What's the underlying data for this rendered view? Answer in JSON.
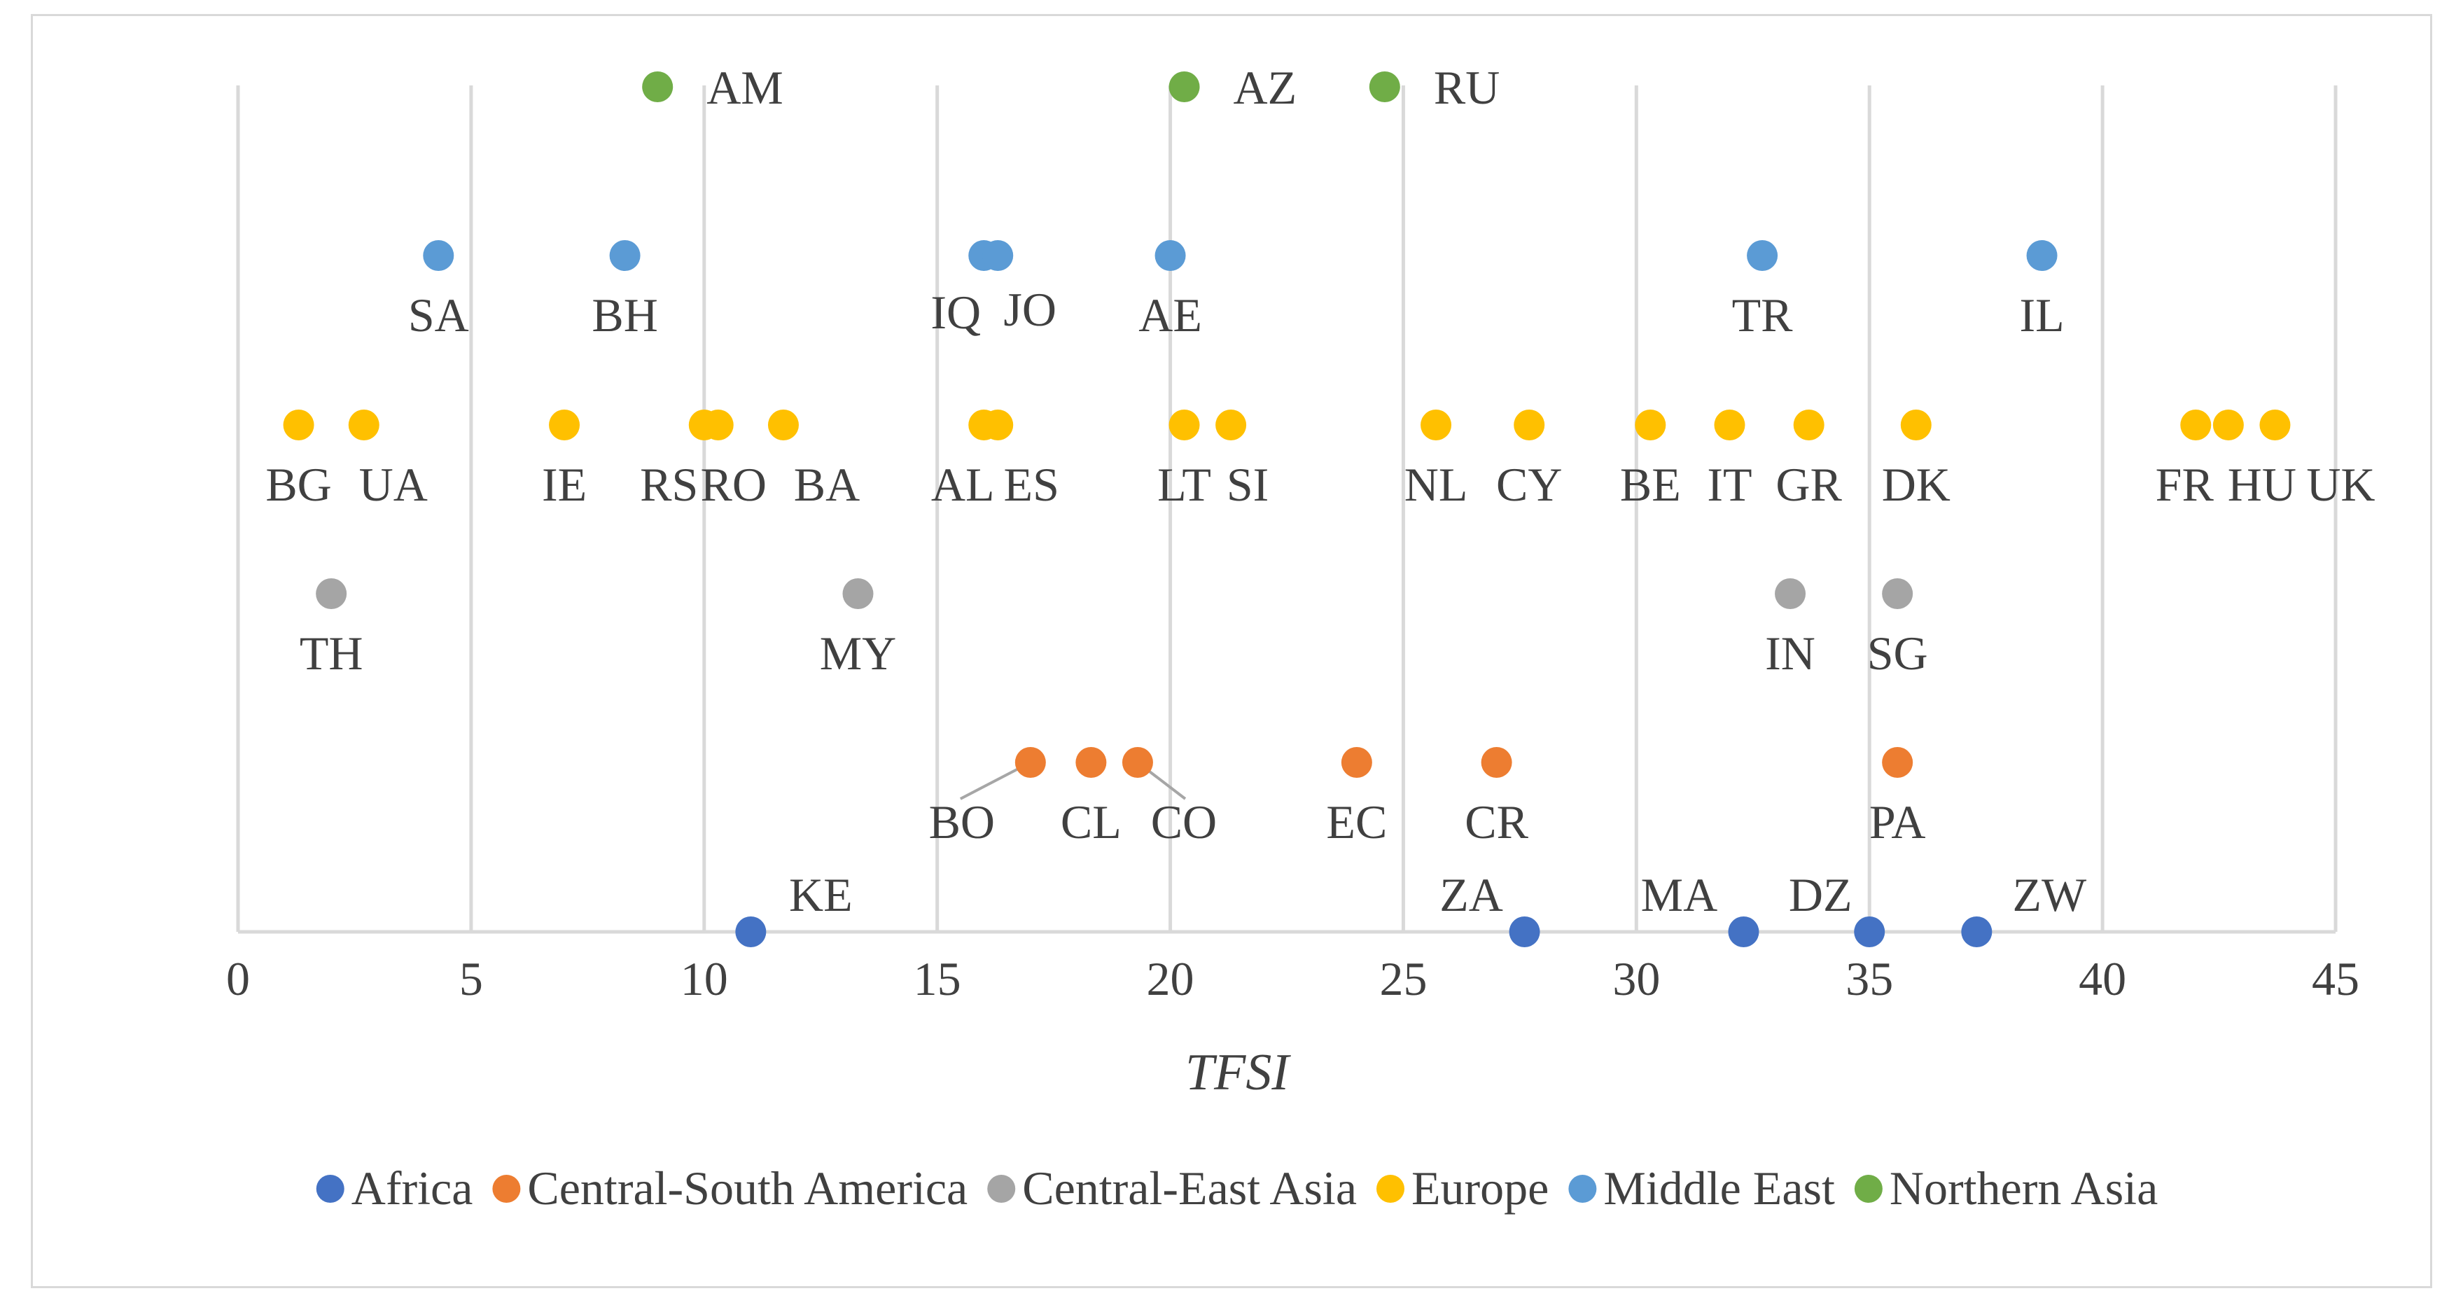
{
  "chart_data": {
    "type": "scatter",
    "title": "",
    "xlabel": "TFSI",
    "ylabel": "",
    "xlim": [
      0,
      45
    ],
    "x_ticks": [
      "0",
      "5",
      "10",
      "15",
      "20",
      "25",
      "30",
      "35",
      "40",
      "45"
    ],
    "grid": true,
    "legend_position": "bottom",
    "series": [
      {
        "name": "Africa",
        "color": "#4472C4",
        "row": 0,
        "points": [
          {
            "label": "KE",
            "x": 11.0
          },
          {
            "label": "ZA",
            "x": 27.6
          },
          {
            "label": "MA",
            "x": 32.3
          },
          {
            "label": "DZ",
            "x": 35.0
          },
          {
            "label": "ZW",
            "x": 37.3
          }
        ]
      },
      {
        "name": "Central-South America",
        "color": "#ED7D31",
        "row": 1,
        "points": [
          {
            "label": "BO",
            "x": 17.0
          },
          {
            "label": "CL",
            "x": 18.3
          },
          {
            "label": "CO",
            "x": 19.3
          },
          {
            "label": "EC",
            "x": 24.0
          },
          {
            "label": "CR",
            "x": 27.0
          },
          {
            "label": "PA",
            "x": 35.6
          }
        ]
      },
      {
        "name": "Central-East Asia",
        "color": "#A5A5A5",
        "row": 2,
        "points": [
          {
            "label": "TH",
            "x": 2.0
          },
          {
            "label": "MY",
            "x": 13.3
          },
          {
            "label": "IN",
            "x": 33.3
          },
          {
            "label": "SG",
            "x": 35.6
          }
        ]
      },
      {
        "name": "Europe",
        "color": "#FFC000",
        "row": 3,
        "points": [
          {
            "label": "BG",
            "x": 1.3
          },
          {
            "label": "UA",
            "x": 2.7
          },
          {
            "label": "IE",
            "x": 7.0
          },
          {
            "label": "RS",
            "x": 10.0
          },
          {
            "label": "RO",
            "x": 10.3
          },
          {
            "label": "BA",
            "x": 11.7
          },
          {
            "label": "AL",
            "x": 16.0
          },
          {
            "label": "ES",
            "x": 16.3
          },
          {
            "label": "LT",
            "x": 20.3
          },
          {
            "label": "SI",
            "x": 21.3
          },
          {
            "label": "NL",
            "x": 25.7
          },
          {
            "label": "CY",
            "x": 27.7
          },
          {
            "label": "BE",
            "x": 30.3
          },
          {
            "label": "IT",
            "x": 32.0
          },
          {
            "label": "GR",
            "x": 33.7
          },
          {
            "label": "DK",
            "x": 36.0
          },
          {
            "label": "FR",
            "x": 42.0
          },
          {
            "label": "HU",
            "x": 42.7
          },
          {
            "label": "UK",
            "x": 43.7
          }
        ]
      },
      {
        "name": "Middle East",
        "color": "#5B9BD5",
        "row": 4,
        "points": [
          {
            "label": "SA",
            "x": 4.3
          },
          {
            "label": "BH",
            "x": 8.3
          },
          {
            "label": "IQ",
            "x": 16.0
          },
          {
            "label": "JO",
            "x": 16.3
          },
          {
            "label": "AE",
            "x": 20.0
          },
          {
            "label": "TR",
            "x": 32.7
          },
          {
            "label": "IL",
            "x": 38.7
          }
        ]
      },
      {
        "name": "Northern Asia",
        "color": "#70AD47",
        "row": 5,
        "points": [
          {
            "label": "AM",
            "x": 9.0
          },
          {
            "label": "AZ",
            "x": 20.3
          },
          {
            "label": "RU",
            "x": 24.6
          }
        ]
      }
    ]
  }
}
